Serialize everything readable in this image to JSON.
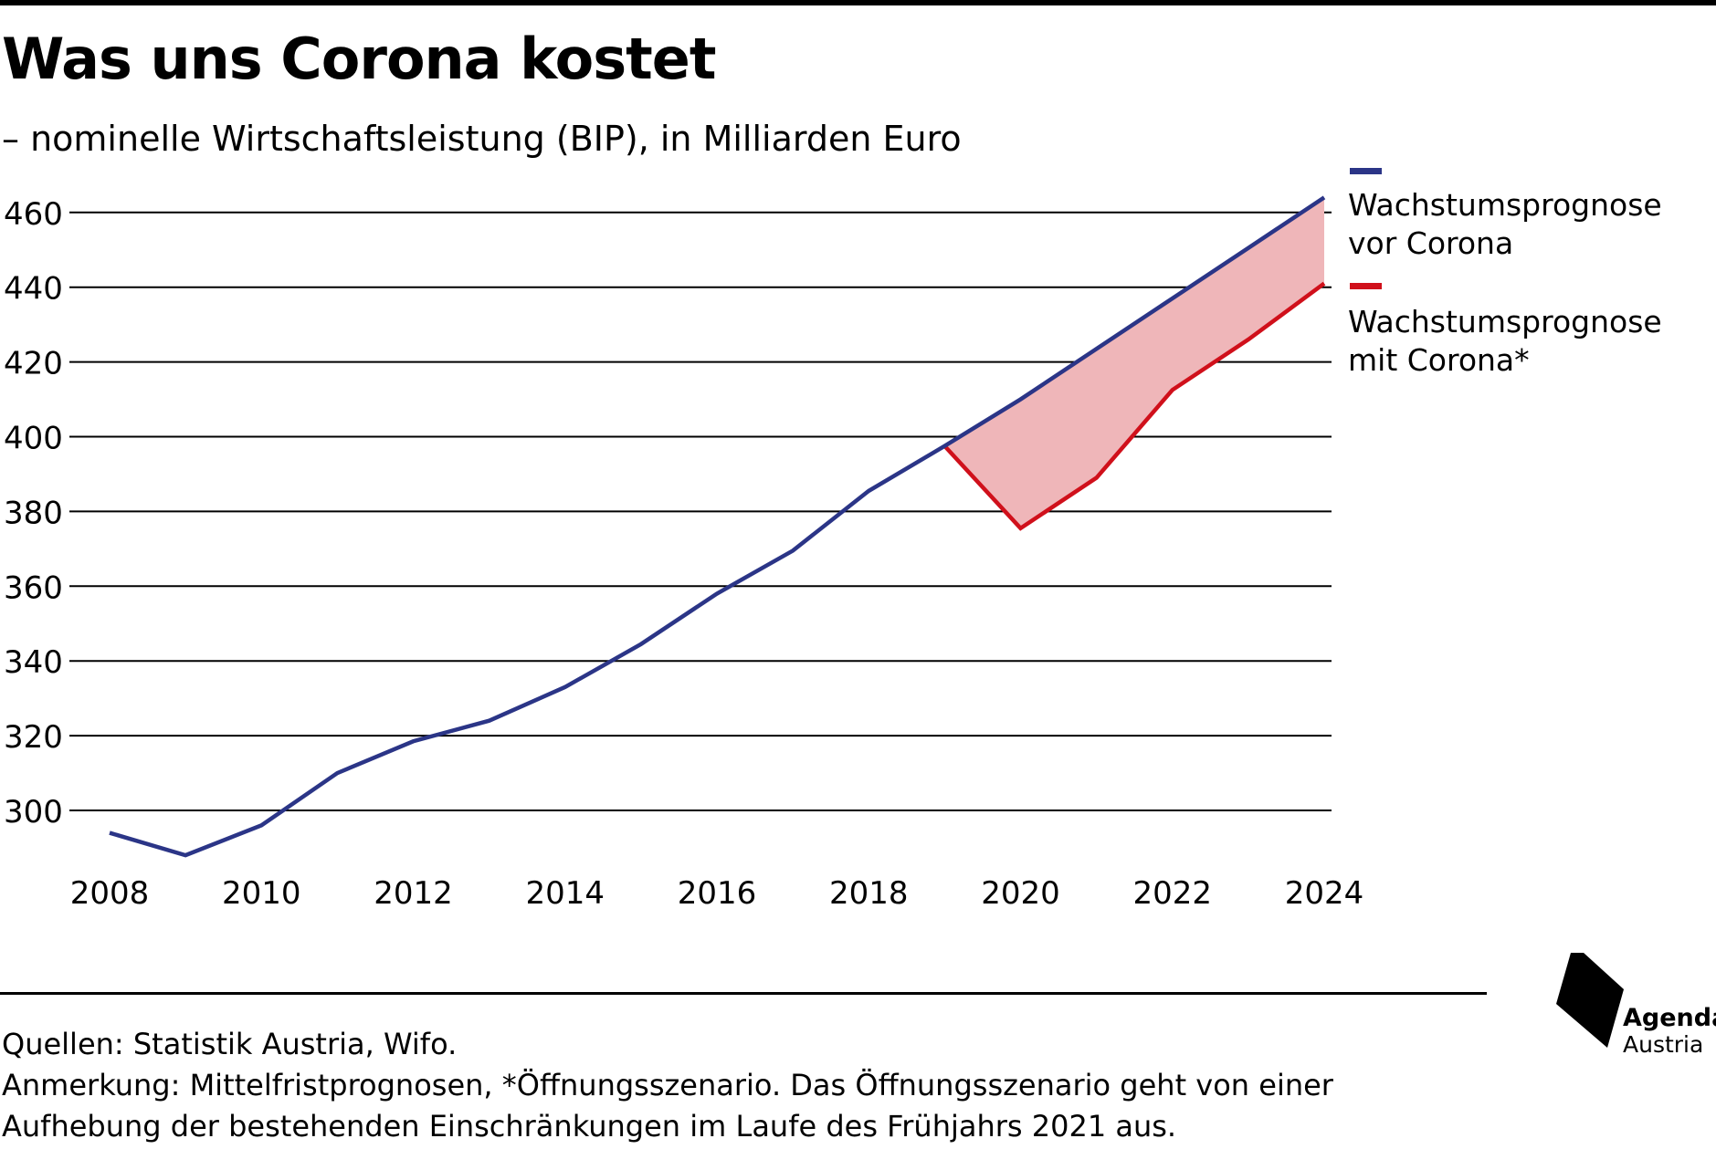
{
  "header": {
    "title": "Was uns Corona kostet",
    "subtitle": "– nominelle Wirtschaftsleistung (BIP), in Milliarden Euro"
  },
  "colors": {
    "pre_corona": "#2b3587",
    "with_corona": "#d0101b",
    "gap_fill": "#efb6b9"
  },
  "chart_data": {
    "type": "line",
    "title": "Was uns Corona kostet",
    "subtitle": "– nominelle Wirtschaftsleistung (BIP), in Milliarden Euro",
    "xlabel": "",
    "ylabel": "",
    "xlim": [
      2008,
      2024
    ],
    "ylim": [
      285,
      465
    ],
    "x_ticks": [
      "2008",
      "2010",
      "2012",
      "2014",
      "2016",
      "2018",
      "2020",
      "2022",
      "2024"
    ],
    "y_ticks": [
      "300",
      "320",
      "340",
      "360",
      "380",
      "400",
      "420",
      "440",
      "460"
    ],
    "grid": "horizontal",
    "legend": "right",
    "series": [
      {
        "name": "Wachstumsprognose vor Corona",
        "color": "#2b3587",
        "x": [
          2008,
          2009,
          2010,
          2011,
          2012,
          2013,
          2014,
          2015,
          2016,
          2017,
          2018,
          2019,
          2020,
          2021,
          2022,
          2023,
          2024
        ],
        "values": [
          294,
          288,
          296,
          310,
          318.5,
          324,
          333,
          344.5,
          358,
          369.5,
          385.5,
          397.5,
          410,
          423.5,
          437,
          450.5,
          464
        ]
      },
      {
        "name": "Wachstumsprognose mit Corona*",
        "color": "#d0101b",
        "x": [
          2019,
          2020,
          2021,
          2022,
          2023,
          2024
        ],
        "values": [
          397.5,
          375.5,
          389,
          412.5,
          426,
          441
        ]
      }
    ],
    "shaded_gap": {
      "between": [
        "Wachstumsprognose vor Corona",
        "Wachstumsprognose mit Corona*"
      ],
      "from": 2019,
      "to": 2024
    }
  },
  "legend": {
    "items": [
      {
        "label_line1": "Wachstumsprognose",
        "label_line2": "vor Corona",
        "color": "#2b3587"
      },
      {
        "label_line1": "Wachstumsprognose",
        "label_line2": "mit Corona*",
        "color": "#d0101b"
      }
    ]
  },
  "footer": {
    "sources": "Quellen: Statistik Austria, Wifo.",
    "note": "Anmerkung: Mittelfristprognosen, *Öffnungsszenario. Das Öffnungsszenario geht von einer Aufhebung der bestehenden Einschränkungen im Laufe des Frühjahrs 2021 aus."
  },
  "logo": {
    "name": "Agenda",
    "sub": "Austria"
  }
}
